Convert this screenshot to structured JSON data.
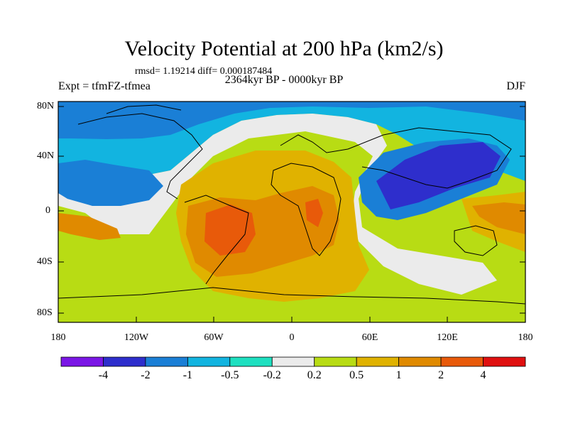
{
  "title": "Velocity Potential at 200 hPa (km2/s)",
  "stats_line": "rmsd= 1.19214 diff= 0.000187484",
  "period": "2364kyr BP - 0000kyr BP",
  "experiment": "Expt = tfmFZ-tfmea",
  "season": "DJF",
  "lat_ticks": [
    "80N",
    "40N",
    "0",
    "40S",
    "80S"
  ],
  "lon_ticks": [
    "180",
    "120W",
    "60W",
    "0",
    "60E",
    "120E",
    "180"
  ],
  "colorbar": {
    "labels": [
      "-4",
      "-2",
      "-1",
      "-0.5",
      "-0.2",
      "0.2",
      "0.5",
      "1",
      "2",
      "4"
    ],
    "colors": [
      "#7b16e6",
      "#2e2ecc",
      "#1a7fd6",
      "#12b4e0",
      "#1ee0c0",
      "#ebebeb",
      "#b8dc14",
      "#e0b200",
      "#e08a00",
      "#e85a0a",
      "#e01010"
    ]
  },
  "colors": {
    "blue_mid": "#1a7fd6",
    "blue_dark": "#2e2ecc",
    "cyan": "#12b4e0",
    "teal": "#1ee0c0",
    "neutral": "#ebebeb",
    "lime": "#b8dc14",
    "gold": "#e0b200",
    "orange": "#e08a00",
    "red_orange": "#e85a0a"
  }
}
